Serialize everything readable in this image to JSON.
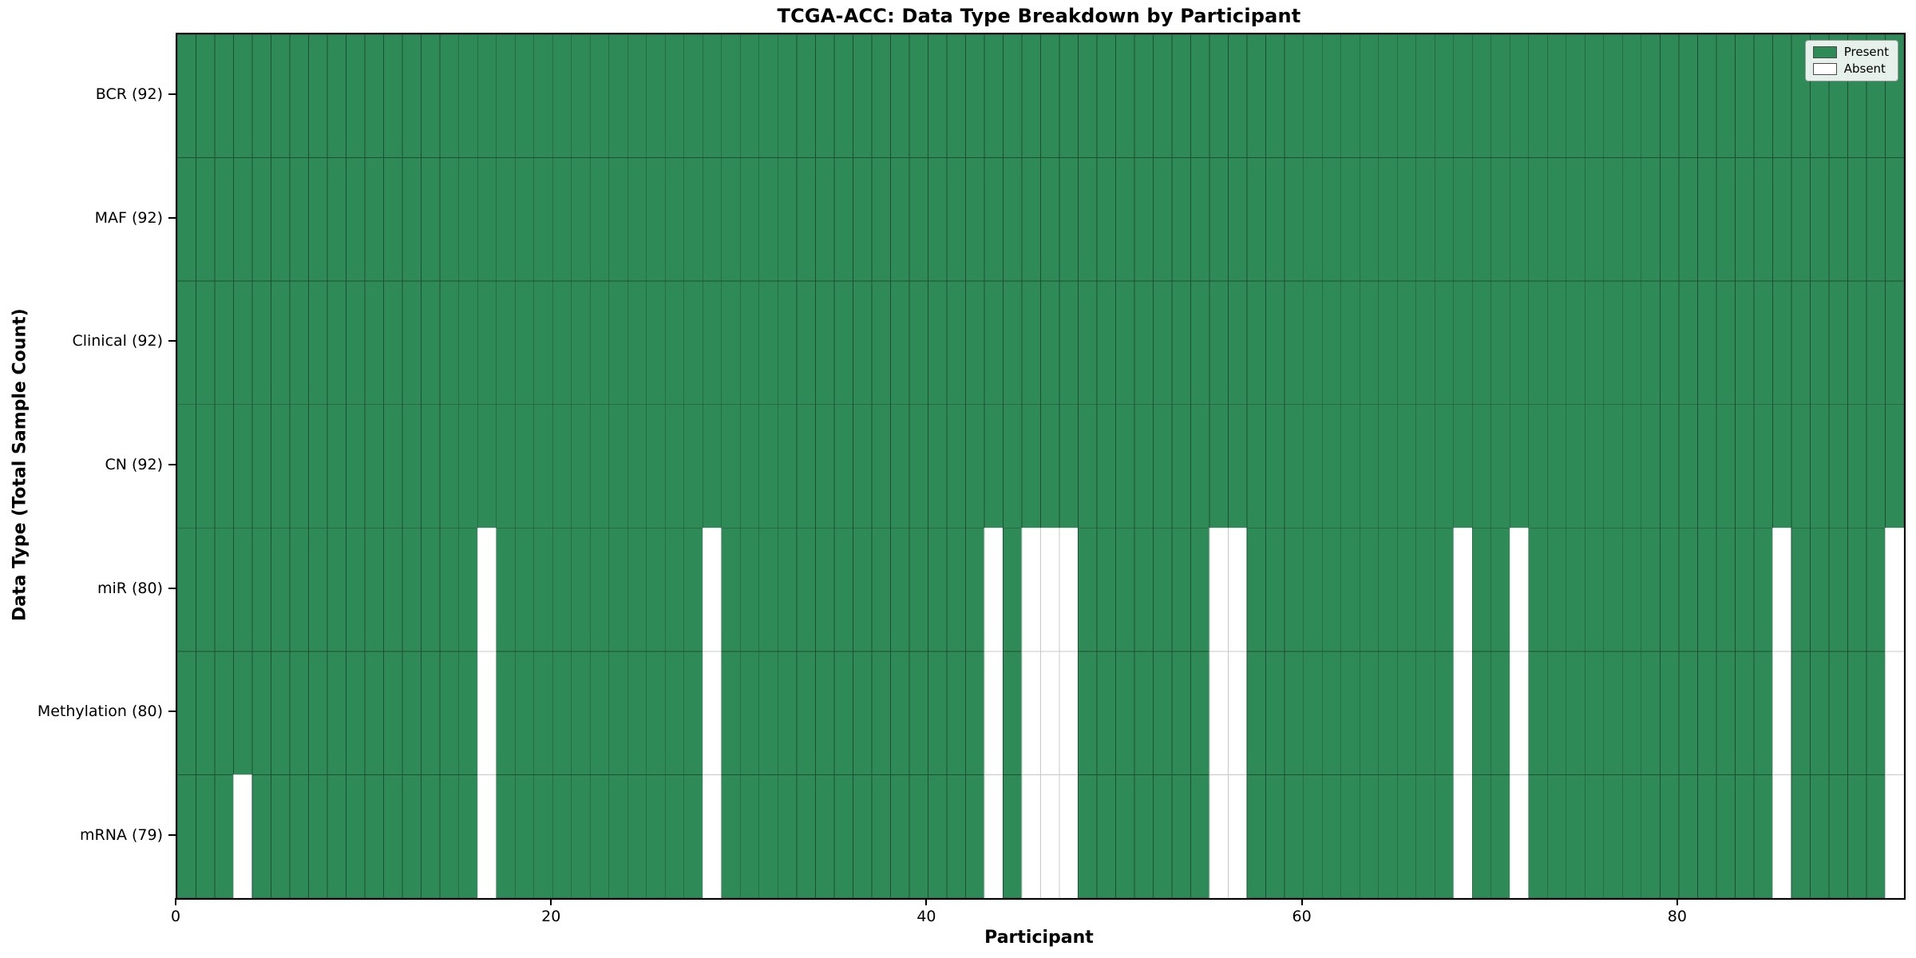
{
  "chart_data": {
    "type": "heatmap",
    "title": "TCGA-ACC: Data Type Breakdown by Participant",
    "xlabel": "Participant",
    "ylabel": "Data Type (Total Sample Count)",
    "xlim": [
      0,
      92
    ],
    "n_participants": 92,
    "x_ticks": [
      0,
      20,
      40,
      60,
      80
    ],
    "grid": true,
    "rows": [
      {
        "label": "BCR (92)",
        "data_type": "BCR",
        "total_count": 92,
        "absent_participants": []
      },
      {
        "label": "MAF (92)",
        "data_type": "MAF",
        "total_count": 92,
        "absent_participants": []
      },
      {
        "label": "Clinical (92)",
        "data_type": "Clinical",
        "total_count": 92,
        "absent_participants": []
      },
      {
        "label": "CN (92)",
        "data_type": "CN",
        "total_count": 92,
        "absent_participants": []
      },
      {
        "label": "miR (80)",
        "data_type": "miR",
        "total_count": 80,
        "absent_participants": [
          16,
          28,
          43,
          45,
          46,
          47,
          55,
          56,
          68,
          71,
          85,
          91
        ]
      },
      {
        "label": "Methylation (80)",
        "data_type": "Methylation",
        "total_count": 80,
        "absent_participants": [
          16,
          28,
          43,
          45,
          46,
          47,
          55,
          56,
          68,
          71,
          85,
          91
        ]
      },
      {
        "label": "mRNA (79)",
        "data_type": "mRNA",
        "total_count": 79,
        "absent_participants": [
          3,
          16,
          28,
          43,
          45,
          46,
          47,
          55,
          56,
          68,
          71,
          85,
          91
        ]
      }
    ],
    "legend": {
      "position": "upper right",
      "items": [
        {
          "label": "Present",
          "color": "#2e8b57"
        },
        {
          "label": "Absent",
          "color": "#ffffff"
        }
      ]
    },
    "colors": {
      "present": "#2e8b57",
      "absent": "#ffffff",
      "present_edge": "#1f4d33",
      "absent_edge": "#c8c8c8",
      "plot_border": "#000000"
    }
  }
}
